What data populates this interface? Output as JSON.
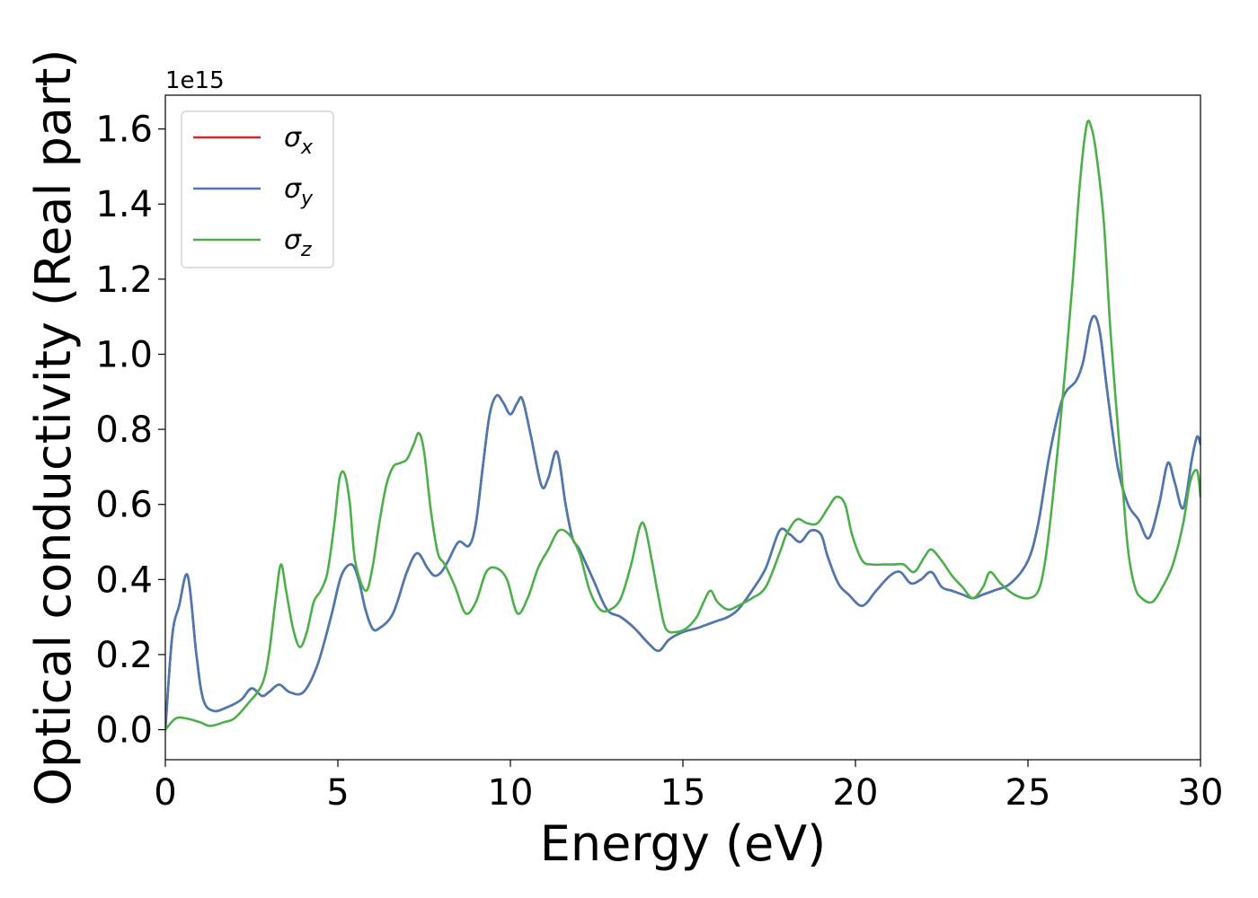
{
  "chart_data": {
    "type": "line",
    "title": "",
    "xlabel": "Energy (eV)",
    "ylabel": "Optical conductivity (Real part)",
    "y_offset_text": "1e15",
    "xlim": [
      0,
      30
    ],
    "ylim": [
      -0.08,
      1.69
    ],
    "x_ticks": [
      0,
      5,
      10,
      15,
      20,
      25,
      30
    ],
    "x_tick_labels": [
      "0",
      "5",
      "10",
      "15",
      "20",
      "25",
      "30"
    ],
    "y_ticks": [
      0.0,
      0.2,
      0.4,
      0.6,
      0.8,
      1.0,
      1.2,
      1.4,
      1.6
    ],
    "y_tick_labels": [
      "0.0",
      "0.2",
      "0.4",
      "0.6",
      "0.8",
      "1.0",
      "1.2",
      "1.4",
      "1.6"
    ],
    "grid": false,
    "legend_position": "top-left",
    "series": [
      {
        "name": "σx",
        "legend_symbol": "σ",
        "legend_subscript": "x",
        "color": "#d62728",
        "x": [
          0,
          0.2,
          0.4,
          0.65,
          0.9,
          1.1,
          1.4,
          1.8,
          2.2,
          2.5,
          2.8,
          3.0,
          3.3,
          3.6,
          4.0,
          4.4,
          4.8,
          5.1,
          5.4,
          5.6,
          5.8,
          6.0,
          6.2,
          6.6,
          7.0,
          7.3,
          7.6,
          7.8,
          8.0,
          8.2,
          8.5,
          8.8,
          9.0,
          9.2,
          9.4,
          9.6,
          9.8,
          10.0,
          10.2,
          10.35,
          10.6,
          10.9,
          11.1,
          11.35,
          11.6,
          11.8,
          12.0,
          12.4,
          12.8,
          13.2,
          13.6,
          14.0,
          14.3,
          14.6,
          15.0,
          15.4,
          15.7,
          16.0,
          16.3,
          16.6,
          17.0,
          17.4,
          17.8,
          18.1,
          18.4,
          18.7,
          19.0,
          19.2,
          19.5,
          19.8,
          20.2,
          20.6,
          21.0,
          21.3,
          21.6,
          21.9,
          22.2,
          22.5,
          22.8,
          23.1,
          23.4,
          23.7,
          24.0,
          24.5,
          25.0,
          25.3,
          25.6,
          25.9,
          26.1,
          26.4,
          26.6,
          26.8,
          26.95,
          27.1,
          27.3,
          27.6,
          27.9,
          28.2,
          28.5,
          28.8,
          29.05,
          29.25,
          29.5,
          29.75,
          29.9,
          30.0
        ],
        "values": [
          0.0,
          0.25,
          0.33,
          0.41,
          0.2,
          0.08,
          0.05,
          0.06,
          0.08,
          0.11,
          0.09,
          0.1,
          0.12,
          0.1,
          0.1,
          0.17,
          0.3,
          0.41,
          0.44,
          0.4,
          0.32,
          0.27,
          0.27,
          0.31,
          0.42,
          0.47,
          0.43,
          0.41,
          0.42,
          0.45,
          0.5,
          0.49,
          0.55,
          0.7,
          0.84,
          0.89,
          0.87,
          0.84,
          0.87,
          0.88,
          0.78,
          0.65,
          0.67,
          0.74,
          0.6,
          0.51,
          0.48,
          0.4,
          0.32,
          0.3,
          0.27,
          0.23,
          0.21,
          0.24,
          0.26,
          0.27,
          0.28,
          0.29,
          0.3,
          0.32,
          0.37,
          0.43,
          0.53,
          0.52,
          0.5,
          0.53,
          0.52,
          0.46,
          0.39,
          0.36,
          0.33,
          0.37,
          0.41,
          0.42,
          0.39,
          0.4,
          0.42,
          0.38,
          0.37,
          0.36,
          0.35,
          0.36,
          0.37,
          0.39,
          0.45,
          0.55,
          0.72,
          0.85,
          0.9,
          0.93,
          0.98,
          1.08,
          1.1,
          1.05,
          0.9,
          0.7,
          0.6,
          0.56,
          0.51,
          0.6,
          0.71,
          0.66,
          0.59,
          0.72,
          0.78,
          0.76
        ]
      },
      {
        "name": "σy",
        "legend_symbol": "σ",
        "legend_subscript": "y",
        "color": "#4a7ab2",
        "x": [
          0,
          0.2,
          0.4,
          0.65,
          0.9,
          1.1,
          1.4,
          1.8,
          2.2,
          2.5,
          2.8,
          3.0,
          3.3,
          3.6,
          4.0,
          4.4,
          4.8,
          5.1,
          5.4,
          5.6,
          5.8,
          6.0,
          6.2,
          6.6,
          7.0,
          7.3,
          7.6,
          7.8,
          8.0,
          8.2,
          8.5,
          8.8,
          9.0,
          9.2,
          9.4,
          9.6,
          9.8,
          10.0,
          10.2,
          10.35,
          10.6,
          10.9,
          11.1,
          11.35,
          11.6,
          11.8,
          12.0,
          12.4,
          12.8,
          13.2,
          13.6,
          14.0,
          14.3,
          14.6,
          15.0,
          15.4,
          15.7,
          16.0,
          16.3,
          16.6,
          17.0,
          17.4,
          17.8,
          18.1,
          18.4,
          18.7,
          19.0,
          19.2,
          19.5,
          19.8,
          20.2,
          20.6,
          21.0,
          21.3,
          21.6,
          21.9,
          22.2,
          22.5,
          22.8,
          23.1,
          23.4,
          23.7,
          24.0,
          24.5,
          25.0,
          25.3,
          25.6,
          25.9,
          26.1,
          26.4,
          26.6,
          26.8,
          26.95,
          27.1,
          27.3,
          27.6,
          27.9,
          28.2,
          28.5,
          28.8,
          29.05,
          29.25,
          29.5,
          29.75,
          29.9,
          30.0
        ],
        "values": [
          0.0,
          0.25,
          0.33,
          0.41,
          0.2,
          0.08,
          0.05,
          0.06,
          0.08,
          0.11,
          0.09,
          0.1,
          0.12,
          0.1,
          0.1,
          0.17,
          0.3,
          0.41,
          0.44,
          0.4,
          0.32,
          0.27,
          0.27,
          0.31,
          0.42,
          0.47,
          0.43,
          0.41,
          0.42,
          0.45,
          0.5,
          0.49,
          0.55,
          0.7,
          0.84,
          0.89,
          0.87,
          0.84,
          0.87,
          0.88,
          0.78,
          0.65,
          0.67,
          0.74,
          0.6,
          0.51,
          0.48,
          0.4,
          0.32,
          0.3,
          0.27,
          0.23,
          0.21,
          0.24,
          0.26,
          0.27,
          0.28,
          0.29,
          0.3,
          0.32,
          0.37,
          0.43,
          0.53,
          0.52,
          0.5,
          0.53,
          0.52,
          0.46,
          0.39,
          0.36,
          0.33,
          0.37,
          0.41,
          0.42,
          0.39,
          0.4,
          0.42,
          0.38,
          0.37,
          0.36,
          0.35,
          0.36,
          0.37,
          0.39,
          0.45,
          0.55,
          0.72,
          0.85,
          0.9,
          0.93,
          0.98,
          1.08,
          1.1,
          1.05,
          0.9,
          0.7,
          0.6,
          0.56,
          0.51,
          0.6,
          0.71,
          0.66,
          0.59,
          0.72,
          0.78,
          0.76
        ]
      },
      {
        "name": "σz",
        "legend_symbol": "σ",
        "legend_subscript": "z",
        "color": "#4daf4a",
        "x": [
          0,
          0.3,
          0.6,
          1.0,
          1.3,
          1.7,
          2.0,
          2.4,
          2.8,
          3.0,
          3.2,
          3.35,
          3.5,
          3.7,
          3.9,
          4.1,
          4.3,
          4.5,
          4.7,
          4.9,
          5.05,
          5.2,
          5.35,
          5.5,
          5.8,
          6.0,
          6.2,
          6.4,
          6.6,
          6.8,
          7.0,
          7.2,
          7.35,
          7.5,
          7.7,
          7.9,
          8.1,
          8.4,
          8.7,
          9.0,
          9.3,
          9.6,
          9.9,
          10.2,
          10.5,
          10.8,
          11.1,
          11.4,
          11.7,
          12.0,
          12.3,
          12.6,
          12.9,
          13.2,
          13.5,
          13.75,
          13.9,
          14.1,
          14.3,
          14.5,
          14.8,
          15.1,
          15.4,
          15.6,
          15.8,
          16.0,
          16.3,
          16.6,
          17.0,
          17.4,
          17.8,
          18.0,
          18.3,
          18.6,
          18.9,
          19.2,
          19.45,
          19.7,
          19.9,
          20.2,
          20.5,
          20.8,
          21.1,
          21.4,
          21.7,
          22.0,
          22.2,
          22.5,
          22.8,
          23.1,
          23.4,
          23.7,
          23.9,
          24.2,
          24.6,
          25.0,
          25.3,
          25.5,
          25.7,
          25.9,
          26.1,
          26.3,
          26.5,
          26.7,
          26.85,
          27.0,
          27.2,
          27.4,
          27.7,
          27.9,
          28.1,
          28.3,
          28.6,
          28.9,
          29.2,
          29.5,
          29.7,
          29.9,
          30.0
        ],
        "values": [
          0.0,
          0.03,
          0.03,
          0.02,
          0.01,
          0.02,
          0.03,
          0.07,
          0.12,
          0.2,
          0.35,
          0.44,
          0.37,
          0.27,
          0.22,
          0.26,
          0.34,
          0.37,
          0.42,
          0.55,
          0.67,
          0.68,
          0.6,
          0.45,
          0.37,
          0.43,
          0.55,
          0.65,
          0.7,
          0.71,
          0.72,
          0.76,
          0.79,
          0.74,
          0.58,
          0.47,
          0.44,
          0.38,
          0.31,
          0.34,
          0.42,
          0.43,
          0.4,
          0.31,
          0.35,
          0.43,
          0.48,
          0.53,
          0.52,
          0.47,
          0.37,
          0.32,
          0.32,
          0.35,
          0.44,
          0.54,
          0.54,
          0.45,
          0.35,
          0.27,
          0.26,
          0.27,
          0.3,
          0.34,
          0.37,
          0.34,
          0.32,
          0.33,
          0.35,
          0.38,
          0.47,
          0.52,
          0.56,
          0.55,
          0.55,
          0.59,
          0.62,
          0.6,
          0.52,
          0.45,
          0.44,
          0.44,
          0.44,
          0.44,
          0.42,
          0.46,
          0.48,
          0.45,
          0.41,
          0.38,
          0.35,
          0.38,
          0.42,
          0.39,
          0.36,
          0.35,
          0.37,
          0.45,
          0.6,
          0.78,
          0.98,
          1.2,
          1.45,
          1.61,
          1.6,
          1.52,
          1.35,
          1.05,
          0.7,
          0.48,
          0.38,
          0.35,
          0.34,
          0.38,
          0.44,
          0.55,
          0.66,
          0.69,
          0.62
        ]
      }
    ]
  }
}
